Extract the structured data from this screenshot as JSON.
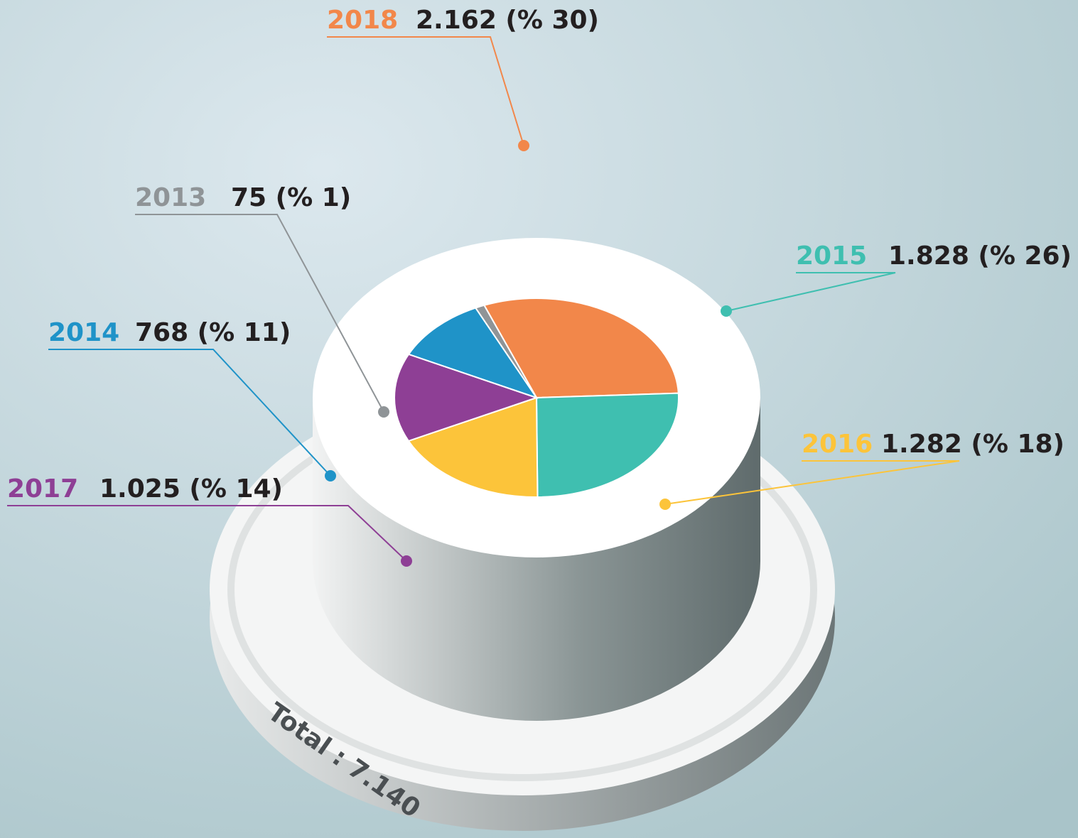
{
  "chart_data": {
    "type": "pie",
    "categories": [
      "2018",
      "2015",
      "2016",
      "2017",
      "2014",
      "2013"
    ],
    "values": [
      2162,
      1828,
      1282,
      1025,
      768,
      75
    ],
    "value_labels": [
      "2.162 (% 30)",
      "1.828 (% 26)",
      "1.282 (% 18)",
      "1.025 (% 14)",
      "768 (% 11)",
      "75 (% 1)"
    ],
    "colors": [
      "#f2874a",
      "#3fbfb0",
      "#fcc43a",
      "#8e3f95",
      "#1f93c8",
      "#8f9497"
    ],
    "annotation": "Total : 7.140"
  }
}
